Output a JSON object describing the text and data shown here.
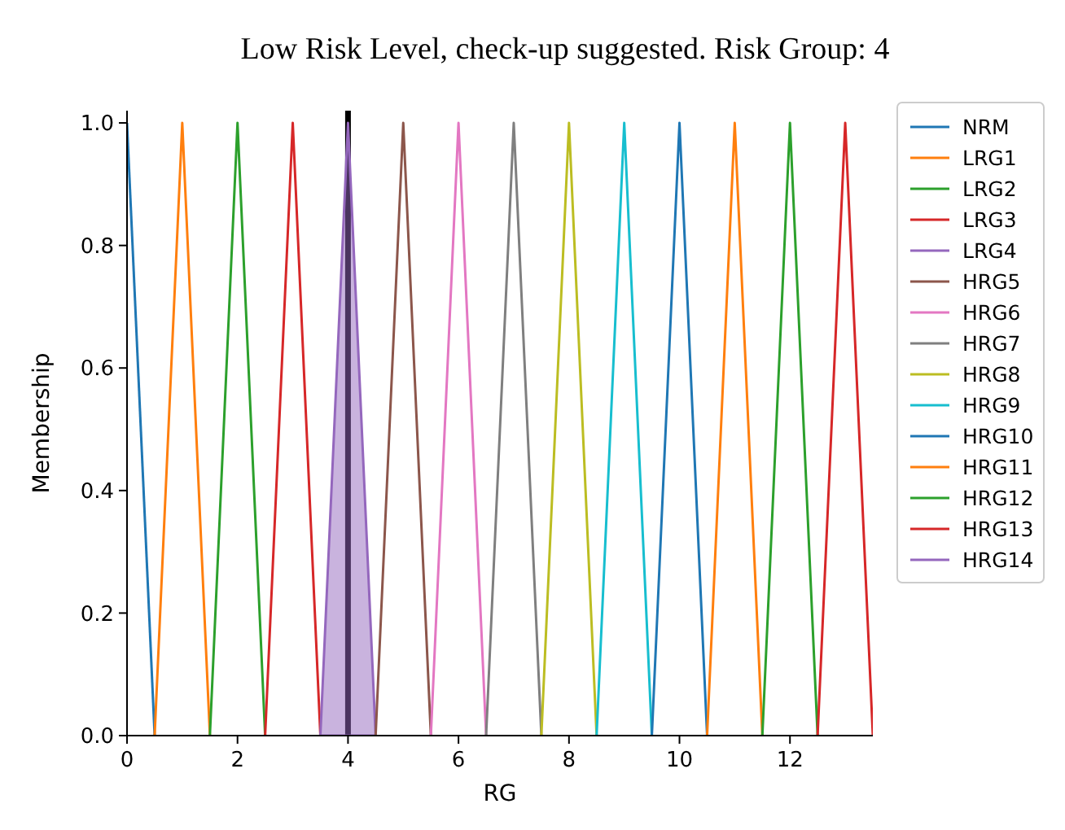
{
  "chart_data": {
    "type": "line",
    "title": "Low Risk Level, check-up suggested. Risk Group: 4",
    "xlabel": "RG",
    "ylabel": "Membership",
    "xlim": [
      0,
      13.5
    ],
    "xticks": [
      0,
      2,
      4,
      6,
      8,
      10,
      12
    ],
    "ylim": [
      0,
      1.02
    ],
    "yticks": [
      {
        "value": 0,
        "label": "0.0"
      },
      {
        "value": 0.2,
        "label": "0.2"
      },
      {
        "value": 0.4,
        "label": "0.4"
      },
      {
        "value": 0.6,
        "label": "0.6"
      },
      {
        "value": 0.8,
        "label": "0.8"
      },
      {
        "value": 1,
        "label": "1.0"
      }
    ],
    "grid": false,
    "legend": "right",
    "line_style": "solid",
    "marker": "none",
    "series": [
      {
        "name": "NRM",
        "color": "#1f77b4",
        "x": [
          0,
          0.5
        ],
        "values": [
          1,
          0
        ]
      },
      {
        "name": "LRG1",
        "color": "#ff7f0e",
        "x": [
          0.5,
          1,
          1.5
        ],
        "values": [
          0,
          1,
          0
        ]
      },
      {
        "name": "LRG2",
        "color": "#2ca02c",
        "x": [
          1.5,
          2,
          2.5
        ],
        "values": [
          0,
          1,
          0
        ]
      },
      {
        "name": "LRG3",
        "color": "#d62728",
        "x": [
          2.5,
          3,
          3.5
        ],
        "values": [
          0,
          1,
          0
        ]
      },
      {
        "name": "LRG4",
        "type": "area",
        "color": "#9467bd",
        "x": [
          3.5,
          4,
          4.5
        ],
        "values": [
          0,
          1,
          0
        ]
      },
      {
        "name": "HRG5",
        "color": "#8c564b",
        "x": [
          4.5,
          5,
          5.5
        ],
        "values": [
          0,
          1,
          0
        ]
      },
      {
        "name": "HRG6",
        "color": "#e377c2",
        "x": [
          5.5,
          6,
          6.5
        ],
        "values": [
          0,
          1,
          0
        ]
      },
      {
        "name": "HRG7",
        "color": "#7f7f7f",
        "x": [
          6.5,
          7,
          7.5
        ],
        "values": [
          0,
          1,
          0
        ]
      },
      {
        "name": "HRG8",
        "color": "#bcbd22",
        "x": [
          7.5,
          8,
          8.5
        ],
        "values": [
          0,
          1,
          0
        ]
      },
      {
        "name": "HRG9",
        "color": "#17becf",
        "x": [
          8.5,
          9,
          9.5
        ],
        "values": [
          0,
          1,
          0
        ]
      },
      {
        "name": "HRG10",
        "color": "#1f77b4",
        "x": [
          9.5,
          10,
          10.5
        ],
        "values": [
          0,
          1,
          0
        ]
      },
      {
        "name": "HRG11",
        "color": "#ff7f0e",
        "x": [
          10.5,
          11,
          11.5
        ],
        "values": [
          0,
          1,
          0
        ]
      },
      {
        "name": "HRG12",
        "color": "#2ca02c",
        "x": [
          11.5,
          12,
          12.5
        ],
        "values": [
          0,
          1,
          0
        ]
      },
      {
        "name": "HRG13",
        "color": "#d62728",
        "x": [
          12.5,
          13,
          13.5
        ],
        "values": [
          0,
          1,
          0
        ]
      },
      {
        "name": "HRG14",
        "color": "#9467bd"
      }
    ],
    "ref_lines": [
      {
        "axis": "x",
        "value": 4,
        "color": "#000000",
        "line_style": "solid"
      }
    ]
  }
}
